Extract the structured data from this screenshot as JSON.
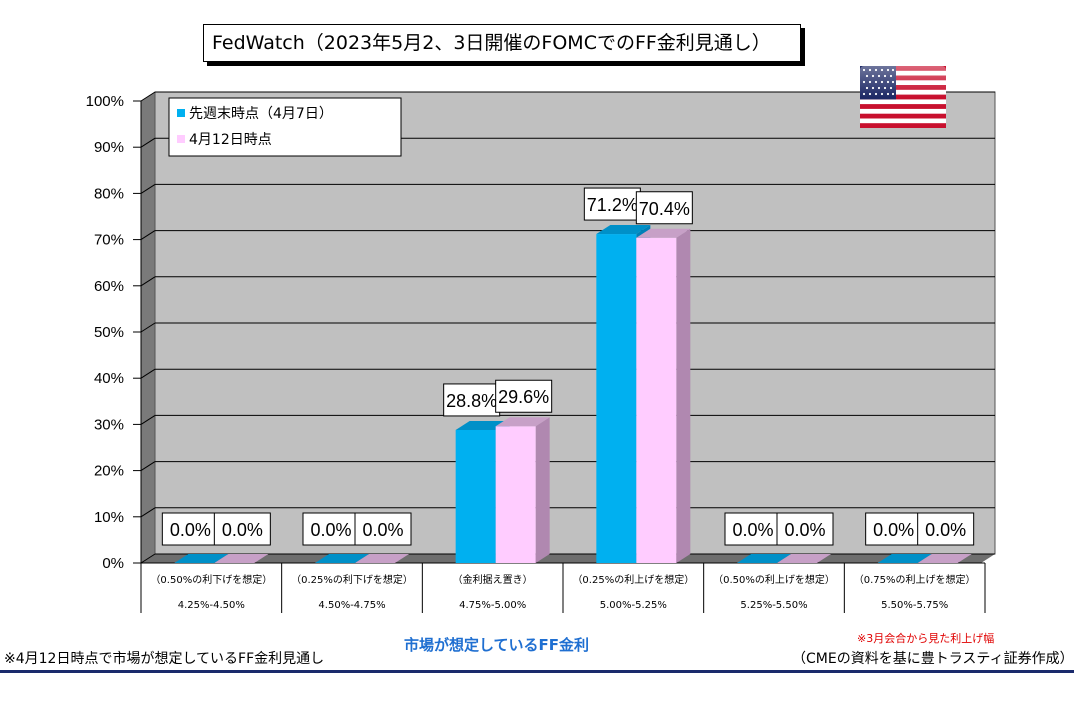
{
  "title": "FedWatch（2023年5月2、3日開催のFOMCでのFF金利見通し）",
  "chart_data": {
    "type": "bar",
    "categories": [
      "4.25%-4.50%",
      "4.50%-4.75%",
      "4.75%-5.00%",
      "5.00%-5.25%",
      "5.25%-5.50%",
      "5.50%-5.75%"
    ],
    "category_notes": [
      "（0.50%の利下げを想定）",
      "（0.25%の利下げを想定）",
      "（金利据え置き）",
      "（0.25%の利上げを想定）",
      "（0.50%の利上げを想定）",
      "（0.75%の利上げを想定）"
    ],
    "series": [
      {
        "name": "先週末時点（4月7日）",
        "values": [
          0.0,
          0.0,
          28.8,
          71.2,
          0.0,
          0.0
        ],
        "labels": [
          "0.0%",
          "0.0%",
          "28.8%",
          "71.2%",
          "0.0%",
          "0.0%"
        ],
        "color": "#00b0f0",
        "side_color": "#0080b8",
        "top_color": "#0090c8"
      },
      {
        "name": "4月12日時点",
        "values": [
          0.0,
          0.0,
          29.6,
          70.4,
          0.0,
          0.0
        ],
        "labels": [
          "0.0%",
          "0.0%",
          "29.6%",
          "70.4%",
          "0.0%",
          "0.0%"
        ],
        "color": "#ffccff",
        "side_color": "#b088b0",
        "top_color": "#c7a0c7"
      }
    ],
    "ylim": [
      0,
      100
    ],
    "yticks": [
      "0%",
      "10%",
      "20%",
      "30%",
      "40%",
      "50%",
      "60%",
      "70%",
      "80%",
      "90%",
      "100%"
    ],
    "grid": true,
    "legend_position": "top-left",
    "plot_bg": "#c0c0c0"
  },
  "footer": {
    "left_note": "※4月12日時点で市場が想定しているFF金利見通し",
    "x_axis_caption": "市場が想定しているFF金利",
    "red_note": "※3月会合から見た利上げ幅",
    "source": "（CMEの資料を基に豊トラスティ証券作成）"
  }
}
